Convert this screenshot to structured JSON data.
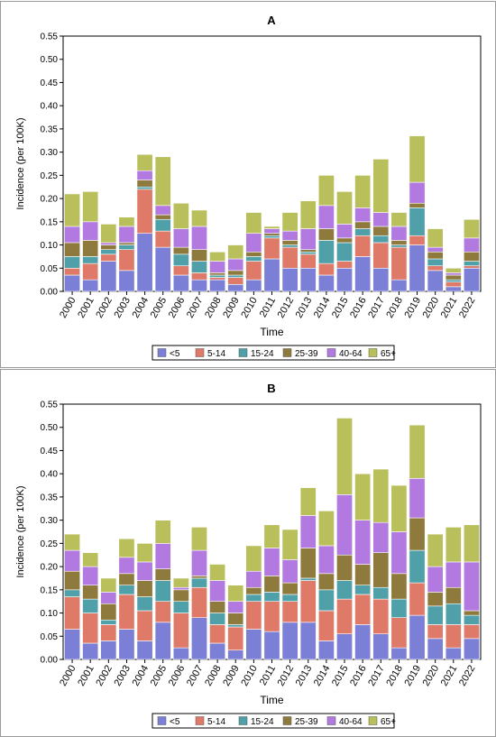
{
  "colors": {
    "lt5": "#7b7fd6",
    "5-14": "#e07a68",
    "15-24": "#4fa0a8",
    "25-39": "#8e7a3c",
    "40-64": "#b27ae0",
    "65plus": "#b9bf5a"
  },
  "chart_data": [
    {
      "type": "bar",
      "stacked": true,
      "title": "A",
      "xlabel": "Time",
      "ylabel": "Incidence (per 100K)",
      "ylim": [
        0,
        0.55
      ],
      "yticks": [
        "0.00",
        "0.05",
        "0.10",
        "0.15",
        "0.20",
        "0.25",
        "0.30",
        "0.35",
        "0.40",
        "0.45",
        "0.50",
        "0.55"
      ],
      "legend_position": "bottom",
      "categories": [
        "2000",
        "2001",
        "2002",
        "2003",
        "2004",
        "2005",
        "2006",
        "2007",
        "2008",
        "2009",
        "2010",
        "2011",
        "2012",
        "2013",
        "2014",
        "2015",
        "2016",
        "2017",
        "2018",
        "2019",
        "2020",
        "2021",
        "2022"
      ],
      "series": [
        {
          "name": "<5",
          "color_key": "lt5",
          "values": [
            0.035,
            0.025,
            0.065,
            0.045,
            0.125,
            0.095,
            0.035,
            0.025,
            0.025,
            0.015,
            0.025,
            0.07,
            0.05,
            0.05,
            0.035,
            0.05,
            0.075,
            0.05,
            0.025,
            0.1,
            0.045,
            0.01,
            0.05
          ]
        },
        {
          "name": "5-14",
          "color_key": "5-14",
          "values": [
            0.015,
            0.035,
            0.015,
            0.045,
            0.095,
            0.035,
            0.02,
            0.015,
            0.005,
            0.015,
            0.04,
            0.045,
            0.045,
            0.03,
            0.025,
            0.015,
            0.045,
            0.055,
            0.07,
            0.02,
            0.01,
            0.01,
            0.005
          ]
        },
        {
          "name": "15-24",
          "color_key": "15-24",
          "values": [
            0.025,
            0.015,
            0.01,
            0.01,
            0.005,
            0.025,
            0.025,
            0.025,
            0.005,
            0.005,
            0.01,
            0.005,
            0.005,
            0.005,
            0.05,
            0.04,
            0.015,
            0.015,
            0.005,
            0.06,
            0.015,
            0.005,
            0.01
          ]
        },
        {
          "name": "25-39",
          "color_key": "25-39",
          "values": [
            0.03,
            0.035,
            0.01,
            0.005,
            0.015,
            0.01,
            0.015,
            0.025,
            0.005,
            0.01,
            0.01,
            0.005,
            0.01,
            0.005,
            0.025,
            0.01,
            0.015,
            0.02,
            0.01,
            0.01,
            0.015,
            0.01,
            0.02
          ]
        },
        {
          "name": "40-64",
          "color_key": "40-64",
          "values": [
            0.035,
            0.04,
            0.005,
            0.035,
            0.02,
            0.02,
            0.04,
            0.05,
            0.025,
            0.025,
            0.04,
            0.01,
            0.02,
            0.045,
            0.05,
            0.03,
            0.03,
            0.03,
            0.03,
            0.045,
            0.01,
            0.005,
            0.03
          ]
        },
        {
          "name": "65+",
          "color_key": "65plus",
          "values": [
            0.07,
            0.065,
            0.04,
            0.02,
            0.035,
            0.105,
            0.055,
            0.035,
            0.02,
            0.03,
            0.045,
            0.005,
            0.04,
            0.06,
            0.065,
            0.07,
            0.07,
            0.115,
            0.03,
            0.1,
            0.04,
            0.01,
            0.04
          ]
        }
      ]
    },
    {
      "type": "bar",
      "stacked": true,
      "title": "B",
      "xlabel": "Time",
      "ylabel": "Incidence (per 100K)",
      "ylim": [
        0,
        0.55
      ],
      "yticks": [
        "0.00",
        "0.05",
        "0.10",
        "0.15",
        "0.20",
        "0.25",
        "0.30",
        "0.35",
        "0.40",
        "0.45",
        "0.50",
        "0.55"
      ],
      "legend_position": "bottom",
      "categories": [
        "2000",
        "2001",
        "2002",
        "2003",
        "2004",
        "2005",
        "2006",
        "2007",
        "2008",
        "2009",
        "2010",
        "2011",
        "2012",
        "2013",
        "2014",
        "2015",
        "2016",
        "2017",
        "2018",
        "2019",
        "2020",
        "2021",
        "2022"
      ],
      "series": [
        {
          "name": "<5",
          "color_key": "lt5",
          "values": [
            0.065,
            0.035,
            0.04,
            0.065,
            0.04,
            0.08,
            0.025,
            0.09,
            0.035,
            0.02,
            0.065,
            0.06,
            0.08,
            0.08,
            0.04,
            0.055,
            0.075,
            0.055,
            0.025,
            0.095,
            0.045,
            0.025,
            0.045
          ]
        },
        {
          "name": "5-14",
          "color_key": "5-14",
          "values": [
            0.07,
            0.065,
            0.035,
            0.075,
            0.065,
            0.045,
            0.075,
            0.065,
            0.04,
            0.05,
            0.06,
            0.065,
            0.045,
            0.09,
            0.065,
            0.075,
            0.065,
            0.075,
            0.065,
            0.07,
            0.03,
            0.05,
            0.03
          ]
        },
        {
          "name": "15-24",
          "color_key": "15-24",
          "values": [
            0.015,
            0.03,
            0.01,
            0.02,
            0.03,
            0.045,
            0.025,
            0.02,
            0.025,
            0.005,
            0.015,
            0.02,
            0.015,
            0.005,
            0.045,
            0.04,
            0.02,
            0.025,
            0.04,
            0.07,
            0.04,
            0.045,
            0.02
          ]
        },
        {
          "name": "25-39",
          "color_key": "25-39",
          "values": [
            0.04,
            0.03,
            0.035,
            0.025,
            0.035,
            0.025,
            0.025,
            0.005,
            0.025,
            0.025,
            0.015,
            0.035,
            0.025,
            0.065,
            0.035,
            0.055,
            0.045,
            0.075,
            0.055,
            0.07,
            0.03,
            0.035,
            0.01
          ]
        },
        {
          "name": "40-64",
          "color_key": "40-64",
          "values": [
            0.045,
            0.04,
            0.025,
            0.035,
            0.04,
            0.055,
            0.005,
            0.055,
            0.045,
            0.025,
            0.035,
            0.06,
            0.05,
            0.07,
            0.06,
            0.13,
            0.095,
            0.065,
            0.09,
            0.085,
            0.055,
            0.055,
            0.105
          ]
        },
        {
          "name": "65+",
          "color_key": "65plus",
          "values": [
            0.035,
            0.03,
            0.03,
            0.04,
            0.04,
            0.05,
            0.02,
            0.05,
            0.035,
            0.035,
            0.055,
            0.05,
            0.065,
            0.06,
            0.075,
            0.165,
            0.1,
            0.115,
            0.1,
            0.115,
            0.07,
            0.075,
            0.08
          ]
        }
      ]
    }
  ]
}
